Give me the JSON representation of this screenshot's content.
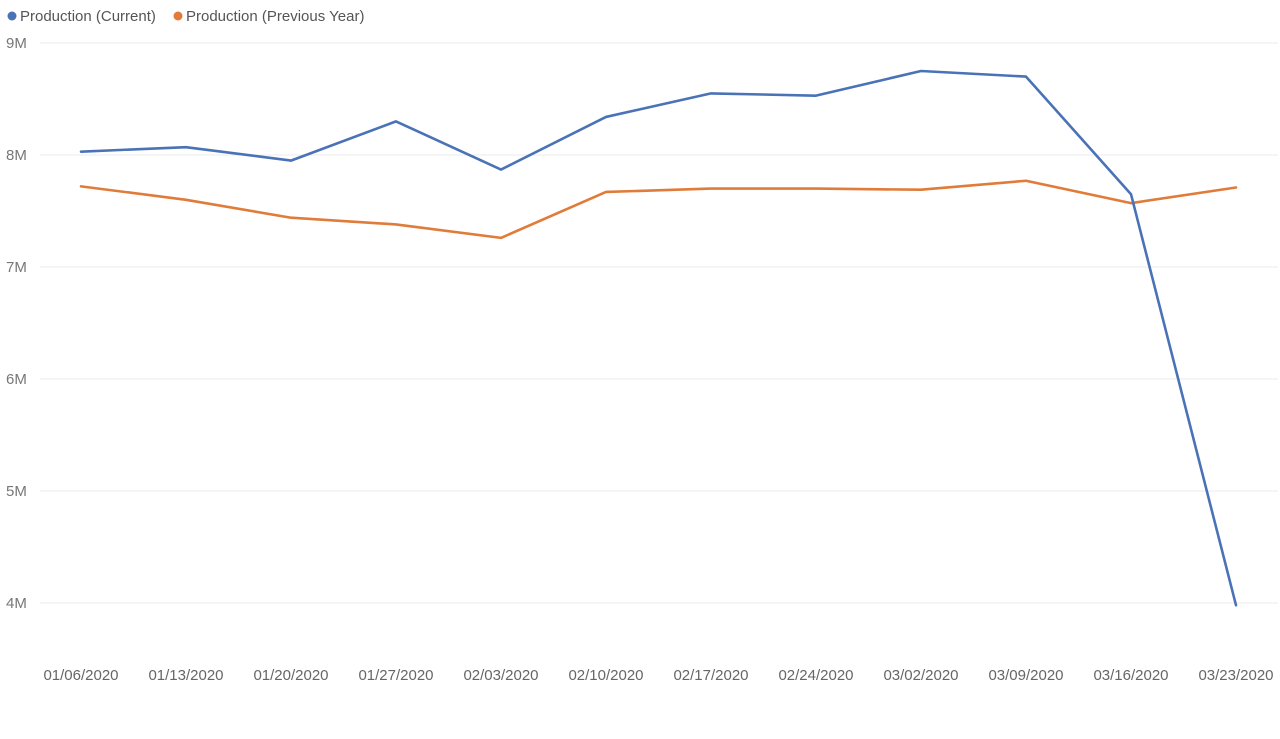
{
  "legend": [
    {
      "label": "Production (Current)",
      "color": "#4a72b7"
    },
    {
      "label": "Production (Previous Year)",
      "color": "#e07b39"
    }
  ],
  "chart_data": {
    "type": "line",
    "x": [
      "01/06/2020",
      "01/13/2020",
      "01/20/2020",
      "01/27/2020",
      "02/03/2020",
      "02/10/2020",
      "02/17/2020",
      "02/24/2020",
      "03/02/2020",
      "03/09/2020",
      "03/16/2020",
      "03/23/2020"
    ],
    "series": [
      {
        "name": "Production (Current)",
        "color": "#4a72b7",
        "values": [
          8.03,
          8.07,
          7.95,
          8.3,
          7.87,
          8.34,
          8.55,
          8.53,
          8.75,
          8.7,
          7.65,
          3.98
        ]
      },
      {
        "name": "Production (Previous Year)",
        "color": "#e07b39",
        "values": [
          7.72,
          7.6,
          7.44,
          7.38,
          7.26,
          7.67,
          7.7,
          7.7,
          7.69,
          7.77,
          7.57,
          7.71
        ]
      }
    ],
    "y_ticks": [
      {
        "value": 9,
        "label": "9M"
      },
      {
        "value": 8,
        "label": "8M"
      },
      {
        "value": 7,
        "label": "7M"
      },
      {
        "value": 6,
        "label": "6M"
      },
      {
        "value": 5,
        "label": "5M"
      },
      {
        "value": 4,
        "label": "4M"
      }
    ],
    "ylim": [
      3.5,
      9
    ],
    "grid": true,
    "legend_position": "top-left"
  }
}
